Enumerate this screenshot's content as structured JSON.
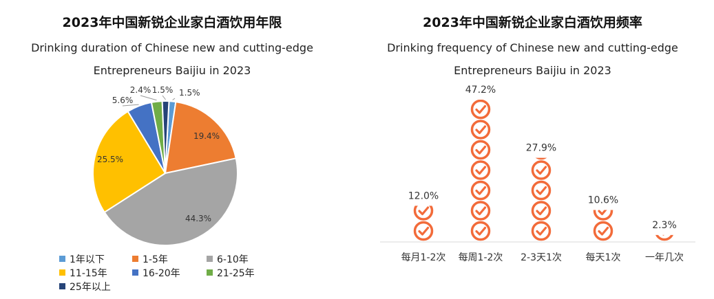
{
  "chart_data": [
    {
      "type": "pie",
      "title": "2023年中国新锐企业家白酒饮用年限",
      "subtitle_line1": "Drinking duration of Chinese new and cutting-edge",
      "subtitle_line2": "Entrepreneurs Baijiu in 2023",
      "legend_position": "bottom",
      "slices": [
        {
          "label": "1年以下",
          "value": 1.5,
          "value_label": "1.5%",
          "color": "#5B9BD5"
        },
        {
          "label": "1-5年",
          "value": 19.4,
          "value_label": "19.4%",
          "color": "#ED7D31"
        },
        {
          "label": "6-10年",
          "value": 44.3,
          "value_label": "44.3%",
          "color": "#A5A5A5"
        },
        {
          "label": "11-15年",
          "value": 25.5,
          "value_label": "25.5%",
          "color": "#FFC000"
        },
        {
          "label": "16-20年",
          "value": 5.6,
          "value_label": "5.6%",
          "color": "#4472C4"
        },
        {
          "label": "21-25年",
          "value": 2.4,
          "value_label": "2.4%",
          "color": "#70AD47"
        },
        {
          "label": "25年以上",
          "value": 1.5,
          "value_label": "1.5%",
          "color": "#264478"
        }
      ]
    },
    {
      "type": "bar",
      "title": "2023年中国新锐企业家白酒饮用频率",
      "subtitle_line1": "Drinking frequency of Chinese new and cutting-edge",
      "subtitle_line2": "Entrepreneurs Baijiu in 2023",
      "categories": [
        "每月1-2次",
        "每周1-2次",
        "2-3天1次",
        "每天1次",
        "一年几次"
      ],
      "values": [
        12.0,
        47.2,
        27.9,
        10.6,
        2.3
      ],
      "value_labels": [
        "12.0%",
        "47.2%",
        "27.9%",
        "10.6%",
        "2.3%"
      ],
      "ylim": [
        0,
        47.2
      ],
      "color": "#F26B3A",
      "mark_icon": "check-circle-icon"
    }
  ]
}
